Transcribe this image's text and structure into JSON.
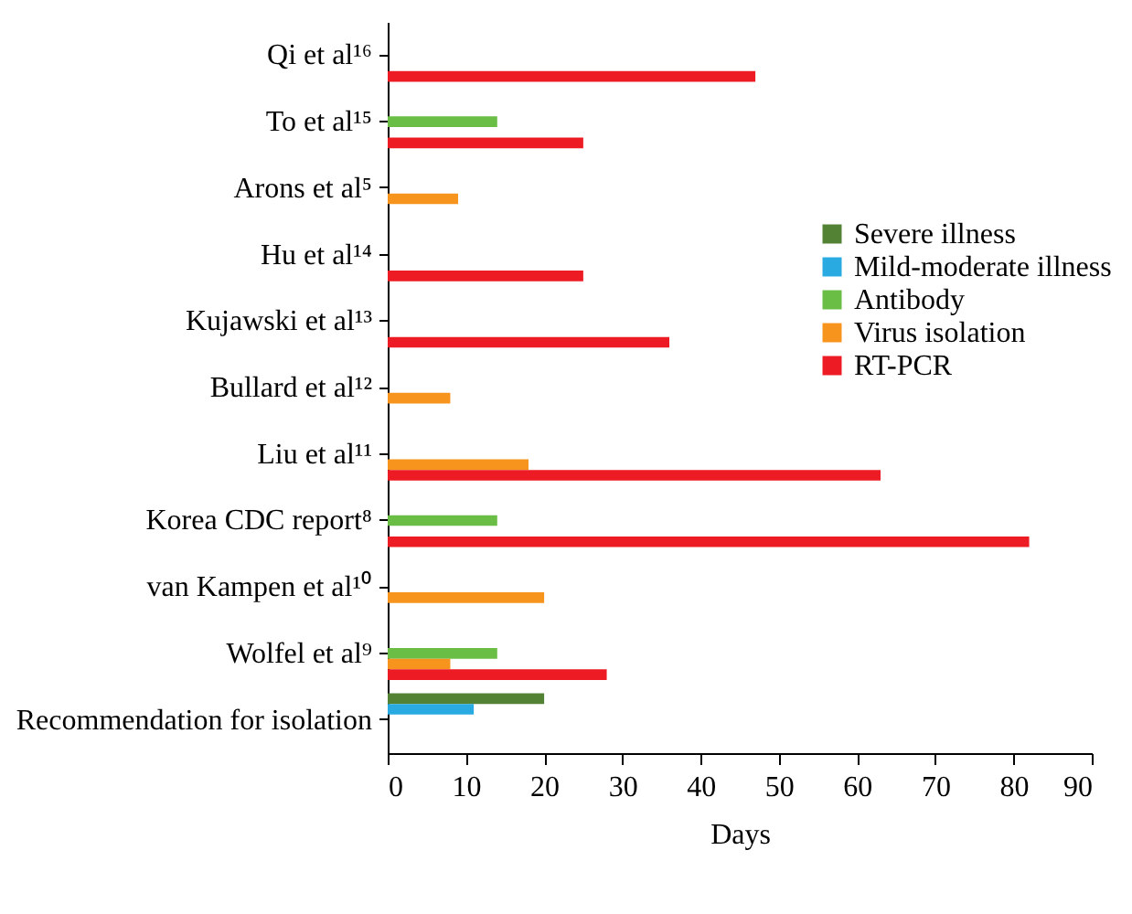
{
  "chart_data": {
    "type": "bar",
    "orientation": "horizontal",
    "xlabel": "Days",
    "categories": [
      "Qi et al¹⁶",
      "To et al¹⁵",
      "Arons et al⁵",
      "Hu et al¹⁴",
      "Kujawski et al¹³",
      "Bullard et al¹²",
      "Liu et al¹¹",
      "Korea CDC report⁸",
      "van Kampen et al¹⁰",
      "Wolfel et al⁹",
      "Recommendation for isolation"
    ],
    "series": [
      {
        "name": "Severe illness",
        "color": "#548235",
        "values": [
          null,
          null,
          null,
          null,
          null,
          null,
          null,
          null,
          null,
          null,
          20
        ]
      },
      {
        "name": "Mild-moderate illness",
        "color": "#29abe2",
        "values": [
          null,
          null,
          null,
          null,
          null,
          null,
          null,
          null,
          null,
          null,
          11
        ]
      },
      {
        "name": "Antibody",
        "color": "#6abd45",
        "values": [
          null,
          14,
          null,
          null,
          null,
          null,
          null,
          14,
          null,
          14,
          null
        ]
      },
      {
        "name": "Virus isolation",
        "color": "#f7941d",
        "values": [
          null,
          null,
          9,
          null,
          null,
          8,
          18,
          null,
          20,
          8,
          null
        ]
      },
      {
        "name": "RT-PCR",
        "color": "#ed1c24",
        "values": [
          47,
          25,
          null,
          25,
          36,
          null,
          63,
          82,
          null,
          28,
          null
        ]
      }
    ],
    "xlim": [
      0,
      90
    ],
    "xticks": [
      0,
      10,
      20,
      30,
      40,
      50,
      60,
      70,
      80,
      90
    ],
    "grid": false,
    "legend": "right"
  }
}
